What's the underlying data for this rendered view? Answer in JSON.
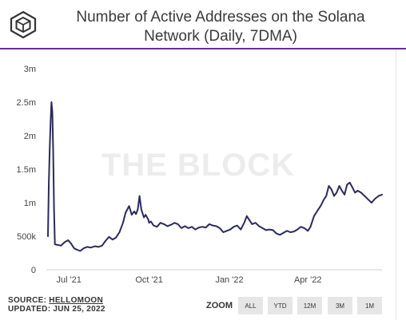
{
  "header": {
    "title_line1": "Number of Active Addresses on the Solana",
    "title_line2": "Network (Daily, 7DMA)",
    "logo_icon": "the-block-cube-logo-icon",
    "accent_color": "#6a2c91"
  },
  "chart_data": {
    "type": "line",
    "watermark": "THE BLOCK",
    "x_ticks": [
      {
        "date": "2021-07-01",
        "label": "Jul '21"
      },
      {
        "date": "2021-10-01",
        "label": "Oct '21"
      },
      {
        "date": "2022-01-01",
        "label": "Jan '22"
      },
      {
        "date": "2022-04-01",
        "label": "Apr '22"
      }
    ],
    "y_ticks": [
      {
        "value": 0,
        "label": "0"
      },
      {
        "value": 500000,
        "label": "500k"
      },
      {
        "value": 1000000,
        "label": "1m"
      },
      {
        "value": 1500000,
        "label": "1.5m"
      },
      {
        "value": 2000000,
        "label": "2m"
      },
      {
        "value": 2500000,
        "label": "2.5m"
      },
      {
        "value": 3000000,
        "label": "3m"
      }
    ],
    "xlim": [
      "2021-06-07",
      "2022-06-25"
    ],
    "ylim": [
      0,
      3000000
    ],
    "grid": false,
    "line_color": "#2b2a5c",
    "series": [
      {
        "x": [
          "2021-06-07",
          "2021-06-08",
          "2021-06-09",
          "2021-06-10",
          "2021-06-11",
          "2021-06-12",
          "2021-06-13",
          "2021-06-14",
          "2021-06-15",
          "2021-06-18",
          "2021-06-22",
          "2021-06-26",
          "2021-06-30",
          "2021-07-03",
          "2021-07-07",
          "2021-07-10",
          "2021-07-14",
          "2021-07-18",
          "2021-07-22",
          "2021-07-26",
          "2021-07-31",
          "2021-08-04",
          "2021-08-08",
          "2021-08-12",
          "2021-08-16",
          "2021-08-20",
          "2021-08-24",
          "2021-08-28",
          "2021-09-01",
          "2021-09-04",
          "2021-09-08",
          "2021-09-11",
          "2021-09-14",
          "2021-09-16",
          "2021-09-18",
          "2021-09-20",
          "2021-09-22",
          "2021-09-25",
          "2021-09-27",
          "2021-09-30",
          "2021-10-01",
          "2021-10-03",
          "2021-10-06",
          "2021-10-10",
          "2021-10-14",
          "2021-10-18",
          "2021-10-22",
          "2021-10-26",
          "2021-10-30",
          "2021-11-03",
          "2021-11-07",
          "2021-11-11",
          "2021-11-15",
          "2021-11-19",
          "2021-11-23",
          "2021-11-27",
          "2021-12-01",
          "2021-12-05",
          "2021-12-09",
          "2021-12-13",
          "2021-12-17",
          "2021-12-21",
          "2021-12-25",
          "2021-12-29",
          "2022-01-02",
          "2022-01-06",
          "2022-01-10",
          "2022-01-14",
          "2022-01-18",
          "2022-01-21",
          "2022-01-23",
          "2022-01-27",
          "2022-01-31",
          "2022-02-04",
          "2022-02-08",
          "2022-02-12",
          "2022-02-16",
          "2022-02-20",
          "2022-02-24",
          "2022-02-28",
          "2022-03-04",
          "2022-03-08",
          "2022-03-12",
          "2022-03-16",
          "2022-03-20",
          "2022-03-24",
          "2022-03-28",
          "2022-04-01",
          "2022-04-04",
          "2022-04-08",
          "2022-04-12",
          "2022-04-16",
          "2022-04-19",
          "2022-04-22",
          "2022-04-25",
          "2022-04-28",
          "2022-05-01",
          "2022-05-04",
          "2022-05-07",
          "2022-05-10",
          "2022-05-13",
          "2022-05-16",
          "2022-05-19",
          "2022-05-22",
          "2022-05-25",
          "2022-05-28",
          "2022-06-01",
          "2022-06-05",
          "2022-06-09",
          "2022-06-13",
          "2022-06-17",
          "2022-06-21",
          "2022-06-25"
        ],
        "y": [
          500000,
          1300000,
          1800000,
          2200000,
          2500000,
          2350000,
          1800000,
          900000,
          380000,
          370000,
          360000,
          410000,
          440000,
          400000,
          320000,
          300000,
          280000,
          320000,
          340000,
          330000,
          350000,
          340000,
          360000,
          430000,
          490000,
          450000,
          480000,
          560000,
          700000,
          850000,
          950000,
          820000,
          870000,
          830000,
          900000,
          1100000,
          900000,
          780000,
          820000,
          750000,
          700000,
          720000,
          660000,
          640000,
          700000,
          680000,
          650000,
          670000,
          700000,
          680000,
          620000,
          650000,
          620000,
          640000,
          600000,
          630000,
          640000,
          630000,
          680000,
          660000,
          650000,
          620000,
          560000,
          580000,
          600000,
          640000,
          660000,
          600000,
          700000,
          800000,
          760000,
          680000,
          700000,
          650000,
          620000,
          590000,
          600000,
          590000,
          540000,
          520000,
          550000,
          580000,
          560000,
          570000,
          600000,
          640000,
          620000,
          580000,
          640000,
          800000,
          880000,
          960000,
          1040000,
          1100000,
          1250000,
          1200000,
          1100000,
          1150000,
          1250000,
          1180000,
          1120000,
          1270000,
          1300000,
          1230000,
          1150000,
          1180000,
          1150000,
          1100000,
          1050000,
          1000000,
          1060000,
          1100000,
          1120000
        ]
      }
    ]
  },
  "footer": {
    "source_prefix": "SOURCE: ",
    "source_link": "HELLOMOON",
    "updated": "UPDATED: JUN 25, 2022",
    "zoom_label": "ZOOM",
    "zoom_buttons": [
      "ALL",
      "YTD",
      "12M",
      "3M",
      "1M"
    ]
  }
}
